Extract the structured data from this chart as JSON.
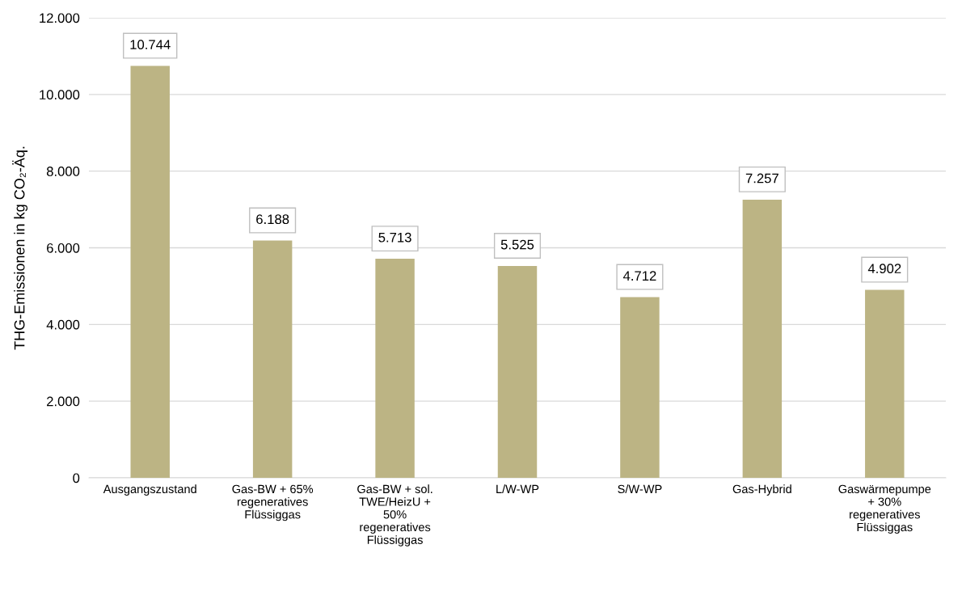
{
  "chart_data": {
    "type": "bar",
    "ylabel": "THG-Emissionen in kg CO₂-Äq.",
    "categories": [
      "Ausgangszustand",
      "Gas-BW + 65% regeneratives Flüssiggas",
      "Gas-BW + sol. TWE/HeizU + 50% regeneratives Flüssiggas",
      "L/W-WP",
      "S/W-WP",
      "Gas-Hybrid",
      "Gaswärmepumpe + 30% regeneratives Flüssiggas"
    ],
    "values": [
      10744,
      6188,
      5713,
      5525,
      4712,
      7257,
      4902
    ],
    "value_labels": [
      "10.744",
      "6.188",
      "5.713",
      "5.525",
      "4.712",
      "7.257",
      "4.902"
    ],
    "color": "#bcb484",
    "ylim": [
      0,
      12000
    ],
    "yticks": [
      0,
      {
        "value": 2000,
        "label": "2.000"
      },
      {
        "value": 4000,
        "label": "4.000"
      },
      {
        "value": 6000,
        "label": "6.000"
      },
      {
        "value": 8000,
        "label": "8.000"
      },
      {
        "value": 10000,
        "label": "10.000"
      },
      {
        "value": 12000,
        "label": "12.000"
      }
    ],
    "grid": "y"
  }
}
